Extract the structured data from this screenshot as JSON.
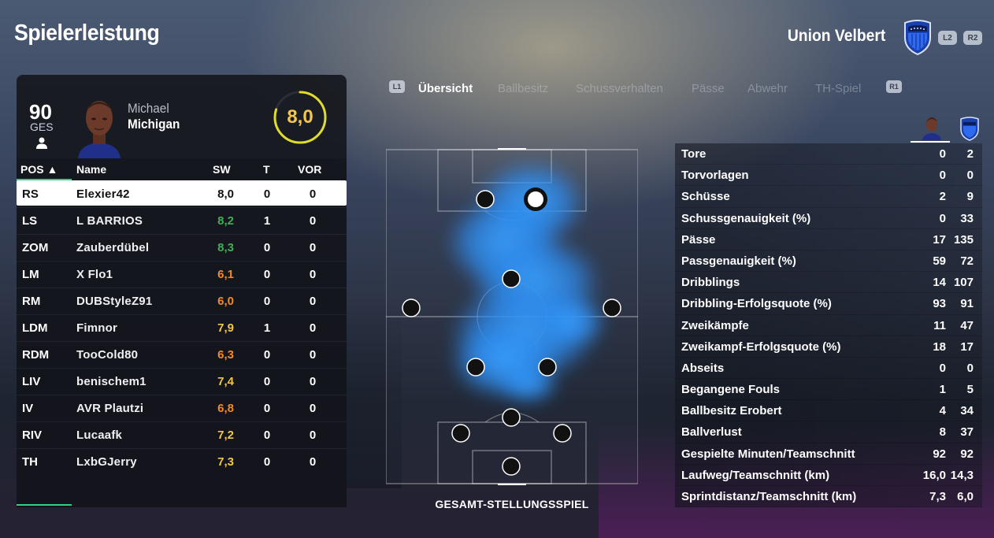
{
  "page_title": "Spielerleistung",
  "team": {
    "name": "Union Velbert",
    "buttons": [
      "L2",
      "R2"
    ]
  },
  "player": {
    "overall": "90",
    "overall_label": "GES",
    "first_name": "Michael",
    "last_name": "Michigan",
    "rating": "8,0",
    "rating_fraction": 0.8
  },
  "roster": {
    "headers": {
      "pos": "POS ▲",
      "name": "Name",
      "sw": "SW",
      "t": "T",
      "vor": "VOR"
    },
    "rows": [
      {
        "pos": "RS",
        "name": "Elexier42",
        "sw": "8,0",
        "t": "0",
        "vor": "0",
        "color": "#111111"
      },
      {
        "pos": "LS",
        "name": "L BARRIOS",
        "sw": "8,2",
        "t": "1",
        "vor": "0",
        "color": "#3fae57"
      },
      {
        "pos": "ZOM",
        "name": "Zauberdübel",
        "sw": "8,3",
        "t": "0",
        "vor": "0",
        "color": "#3fae57"
      },
      {
        "pos": "LM",
        "name": "X Flo1",
        "sw": "6,1",
        "t": "0",
        "vor": "0",
        "color": "#f08a2a"
      },
      {
        "pos": "RM",
        "name": "DUBStyleZ91",
        "sw": "6,0",
        "t": "0",
        "vor": "0",
        "color": "#f08a2a"
      },
      {
        "pos": "LDM",
        "name": "Fimnor",
        "sw": "7,9",
        "t": "1",
        "vor": "0",
        "color": "#f3c64a"
      },
      {
        "pos": "RDM",
        "name": "TooCold80",
        "sw": "6,3",
        "t": "0",
        "vor": "0",
        "color": "#f08a2a"
      },
      {
        "pos": "LIV",
        "name": "benischem1",
        "sw": "7,4",
        "t": "0",
        "vor": "0",
        "color": "#f3c64a"
      },
      {
        "pos": "IV",
        "name": "AVR Plautzi",
        "sw": "6,8",
        "t": "0",
        "vor": "0",
        "color": "#f08a2a"
      },
      {
        "pos": "RIV",
        "name": "Lucaafk",
        "sw": "7,2",
        "t": "0",
        "vor": "0",
        "color": "#f3c64a"
      },
      {
        "pos": "TH",
        "name": "LxbGJerry",
        "sw": "7,3",
        "t": "0",
        "vor": "0",
        "color": "#f3c64a"
      }
    ]
  },
  "tabs": {
    "left_button": "L1",
    "right_button": "R1",
    "items": [
      "Übersicht",
      "Ballbesitz",
      "Schussverhalten",
      "Pässe",
      "Abwehr",
      "TH-Spiel"
    ],
    "active": 0
  },
  "pitch": {
    "caption": "GESAMT-STELLUNGSSPIEL"
  },
  "stats": [
    {
      "label": "Tore",
      "player": "0",
      "team": "2"
    },
    {
      "label": "Torvorlagen",
      "player": "0",
      "team": "0"
    },
    {
      "label": "Schüsse",
      "player": "2",
      "team": "9"
    },
    {
      "label": "Schussgenauigkeit (%)",
      "player": "0",
      "team": "33"
    },
    {
      "label": "Pässe",
      "player": "17",
      "team": "135"
    },
    {
      "label": "Passgenauigkeit (%)",
      "player": "59",
      "team": "72"
    },
    {
      "label": "Dribblings",
      "player": "14",
      "team": "107"
    },
    {
      "label": "Dribbling-Erfolgsquote (%)",
      "player": "93",
      "team": "91"
    },
    {
      "label": "Zweikämpfe",
      "player": "11",
      "team": "47"
    },
    {
      "label": "Zweikampf-Erfolgsquote (%)",
      "player": "18",
      "team": "17"
    },
    {
      "label": "Abseits",
      "player": "0",
      "team": "0"
    },
    {
      "label": "Begangene Fouls",
      "player": "1",
      "team": "5"
    },
    {
      "label": "Ballbesitz Erobert",
      "player": "4",
      "team": "34"
    },
    {
      "label": "Ballverlust",
      "player": "8",
      "team": "37"
    },
    {
      "label": "Gespielte Minuten/Teamschnitt",
      "player": "92",
      "team": "92"
    },
    {
      "label": "Laufweg/Teamschnitt (km)",
      "player": "16,0",
      "team": "14,3"
    },
    {
      "label": "Sprintdistanz/Teamschnitt (km)",
      "player": "7,3",
      "team": "6,0"
    }
  ]
}
